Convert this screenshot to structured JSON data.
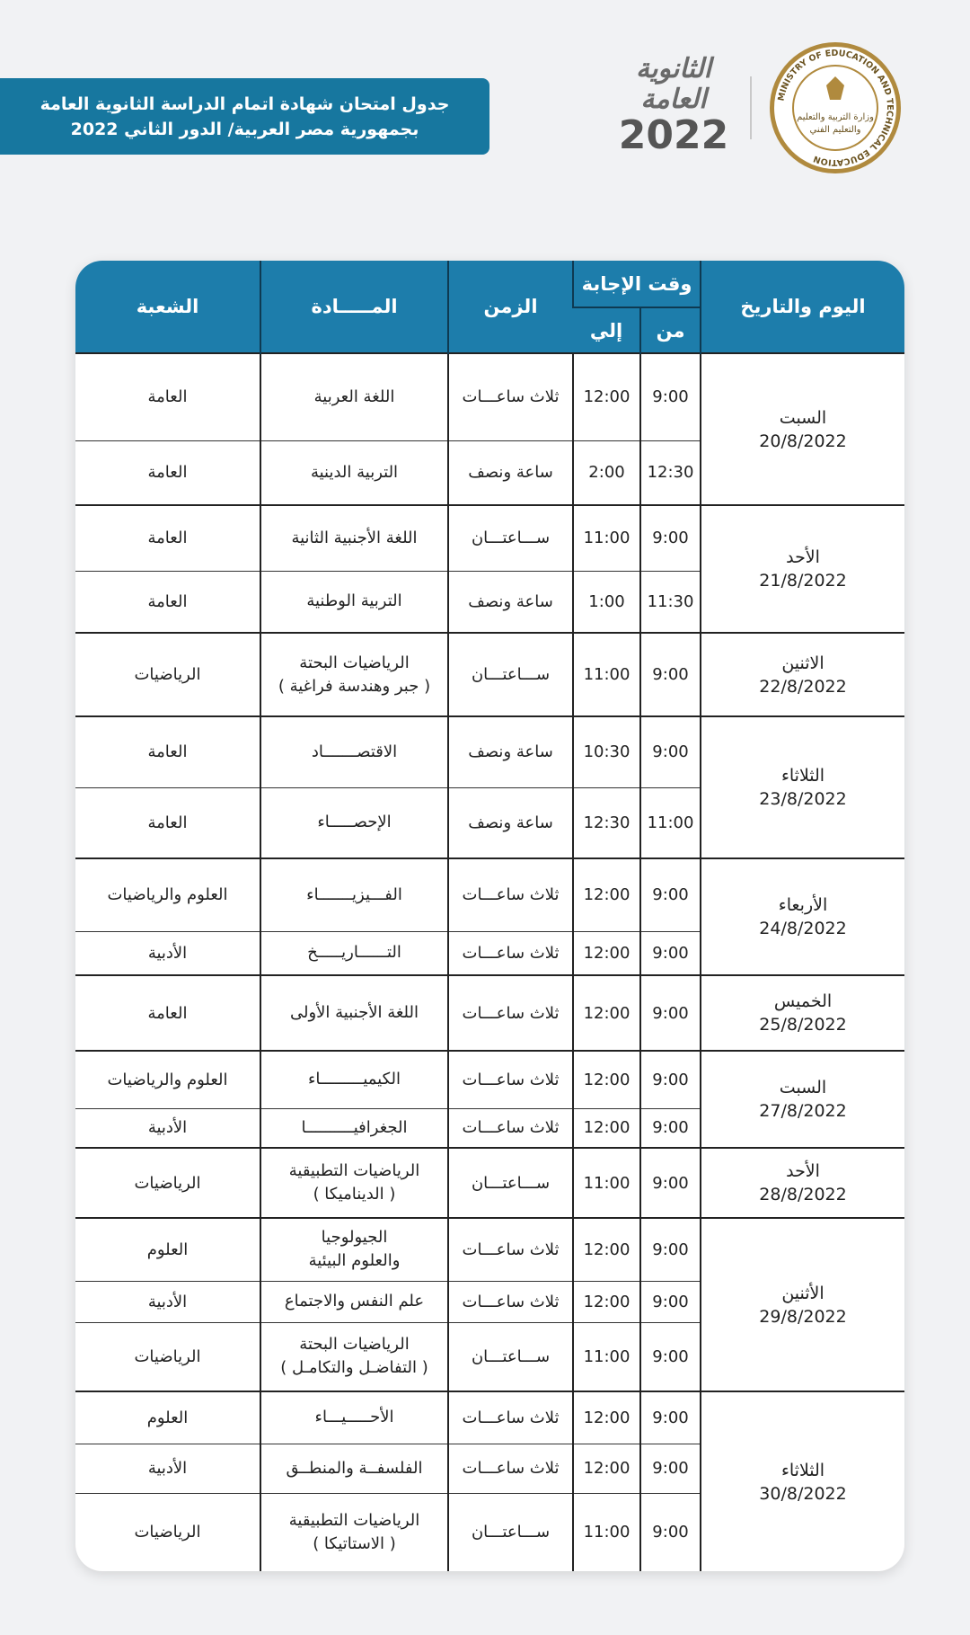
{
  "header": {
    "title_lines": [
      "جدول امتحان شهادة اتمام الدراسة الثانوية العامة",
      "بجمهورية مصر العربية/ الدور الثاني 2022"
    ]
  },
  "logos": {
    "ministry_en": "MINISTRY OF EDUCATION AND TECHNICAL EDUCATION",
    "ministry_ar": [
      "وزارة التربية والتعليم",
      "والتعليم الفني"
    ],
    "exam_name": [
      "الثانوية",
      "العامة"
    ],
    "exam_year": "2022"
  },
  "table": {
    "headers": {
      "day": "اليوم والتاريخ",
      "answer_time": "وقت الإجابة",
      "from": "من",
      "to": "إلي",
      "duration": "الزمن",
      "subject": "المـــــادة",
      "branch": "الشعبة"
    },
    "days": [
      {
        "day": "السبت",
        "date": "20/8/2022",
        "sessions": [
          {
            "from": "9:00",
            "to": "12:00",
            "duration": "ثلاث ساعـــات",
            "subject": [
              "اللغة العربية"
            ],
            "branch": "العامة"
          },
          {
            "from": "12:30",
            "to": "2:00",
            "duration": "ساعة ونصف",
            "subject": [
              "التربية الدينية"
            ],
            "branch": "العامة"
          }
        ]
      },
      {
        "day": "الأحد",
        "date": "21/8/2022",
        "sessions": [
          {
            "from": "9:00",
            "to": "11:00",
            "duration": "ســـاعتـــان",
            "subject": [
              "اللغة الأجنبية الثانية"
            ],
            "branch": "العامة"
          },
          {
            "from": "11:30",
            "to": "1:00",
            "duration": "ساعة ونصف",
            "subject": [
              "التربية الوطنية"
            ],
            "branch": "العامة"
          }
        ]
      },
      {
        "day": "الاثنين",
        "date": "22/8/2022",
        "sessions": [
          {
            "from": "9:00",
            "to": "11:00",
            "duration": "ســـاعتـــان",
            "subject": [
              "الرياضيات البحتة",
              "( جبر وهندسة فراغية )"
            ],
            "branch": "الرياضيات"
          }
        ]
      },
      {
        "day": "الثلاثاء",
        "date": "23/8/2022",
        "sessions": [
          {
            "from": "9:00",
            "to": "10:30",
            "duration": "ساعة ونصف",
            "subject": [
              "الاقتصـــــــاد"
            ],
            "branch": "العامة"
          },
          {
            "from": "11:00",
            "to": "12:30",
            "duration": "ساعة ونصف",
            "subject": [
              "الإحصـــــاء"
            ],
            "branch": "العامة"
          }
        ]
      },
      {
        "day": "الأربعاء",
        "date": "24/8/2022",
        "sessions": [
          {
            "from": "9:00",
            "to": "12:00",
            "duration": "ثلاث ساعـــات",
            "subject": [
              "الفـــيزيـــــــاء"
            ],
            "branch": "العلوم والرياضيات"
          },
          {
            "from": "9:00",
            "to": "12:00",
            "duration": "ثلاث ساعـــات",
            "subject": [
              "التــــــاريـــــخ"
            ],
            "branch": "الأدبية"
          }
        ]
      },
      {
        "day": "الخميس",
        "date": "25/8/2022",
        "sessions": [
          {
            "from": "9:00",
            "to": "12:00",
            "duration": "ثلاث ساعـــات",
            "subject": [
              "اللغة الأجنبية الأولى"
            ],
            "branch": "العامة"
          }
        ]
      },
      {
        "day": "السبت",
        "date": "27/8/2022",
        "sessions": [
          {
            "from": "9:00",
            "to": "12:00",
            "duration": "ثلاث ساعـــات",
            "subject": [
              "الكيميـــــــــاء"
            ],
            "branch": "العلوم والرياضيات"
          },
          {
            "from": "9:00",
            "to": "12:00",
            "duration": "ثلاث ساعـــات",
            "subject": [
              "الجغرافيــــــــــا"
            ],
            "branch": "الأدبية"
          }
        ]
      },
      {
        "day": "الأحد",
        "date": "28/8/2022",
        "sessions": [
          {
            "from": "9:00",
            "to": "11:00",
            "duration": "ســـاعتـــان",
            "subject": [
              "الرياضيات التطبيقية",
              "( الديناميكا )"
            ],
            "branch": "الرياضيات"
          }
        ]
      },
      {
        "day": "الأثنين",
        "date": "29/8/2022",
        "sessions": [
          {
            "from": "9:00",
            "to": "12:00",
            "duration": "ثلاث ساعـــات",
            "subject": [
              "الجيولوجيا",
              "والعلوم البيئية"
            ],
            "branch": "العلوم"
          },
          {
            "from": "9:00",
            "to": "12:00",
            "duration": "ثلاث ساعـــات",
            "subject": [
              "علم النفس والاجتماع"
            ],
            "branch": "الأدبية"
          },
          {
            "from": "9:00",
            "to": "11:00",
            "duration": "ســـاعتـــان",
            "subject": [
              "الرياضيات البحتة",
              "( التفاضـل والتكامـل )"
            ],
            "branch": "الرياضيات"
          }
        ]
      },
      {
        "day": "الثلاثاء",
        "date": "30/8/2022",
        "sessions": [
          {
            "from": "9:00",
            "to": "12:00",
            "duration": "ثلاث ساعـــات",
            "subject": [
              "الأحـــــيـــاء"
            ],
            "branch": "العلوم"
          },
          {
            "from": "9:00",
            "to": "12:00",
            "duration": "ثلاث ساعـــات",
            "subject": [
              "الفلسفــة والمنطــق"
            ],
            "branch": "الأدبية"
          },
          {
            "from": "9:00",
            "to": "11:00",
            "duration": "ســـاعتـــان",
            "subject": [
              "الرياضيات التطبيقية",
              "( الاستاتيكا )"
            ],
            "branch": "الرياضيات"
          }
        ]
      }
    ]
  }
}
